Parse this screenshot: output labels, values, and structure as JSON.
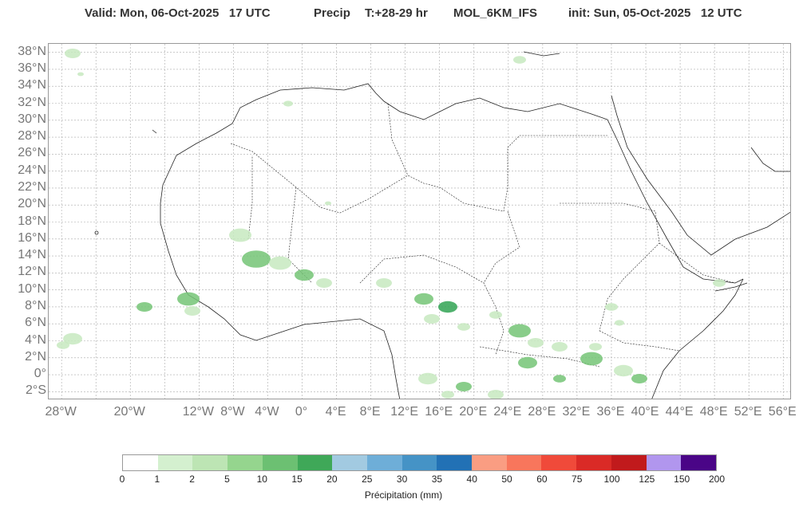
{
  "header": {
    "valid": "Valid: Mon, 06-Oct-2025   17 UTC",
    "precip": "Precip",
    "timestep": "T:+28-29 hr",
    "model": "MOL_6KM_IFS",
    "init": "init: Sun, 05-Oct-2025   12 UTC"
  },
  "map": {
    "lat_labels": [
      "38°N",
      "36°N",
      "34°N",
      "32°N",
      "30°N",
      "28°N",
      "26°N",
      "24°N",
      "22°N",
      "20°N",
      "18°N",
      "16°N",
      "14°N",
      "12°N",
      "10°N",
      "8°N",
      "6°N",
      "4°N",
      "2°N",
      "0°",
      "2°S"
    ],
    "lon_labels": [
      "28°W",
      "20°W",
      "12°W",
      "8°W",
      "4°W",
      "0°",
      "4°E",
      "8°E",
      "12°E",
      "16°E",
      "20°E",
      "24°E",
      "28°E",
      "32°E",
      "36°E",
      "40°E",
      "44°E",
      "48°E",
      "52°E",
      "56°E"
    ],
    "gridline_color": "#aaaaaa",
    "coastline_color": "#222222",
    "precip_color_light": "#c7e9c0",
    "precip_color_mid": "#74c476",
    "precip_color_dark": "#31a354"
  },
  "colorbar": {
    "ticks": [
      "0",
      "1",
      "2",
      "5",
      "10",
      "15",
      "20",
      "25",
      "30",
      "35",
      "40",
      "50",
      "60",
      "75",
      "100",
      "125",
      "150",
      "200"
    ],
    "colors": [
      "#ffffff",
      "#d4f0cf",
      "#bde5b4",
      "#95d58e",
      "#6cc072",
      "#3fa858",
      "#a2cae1",
      "#6eaed8",
      "#4593c6",
      "#2271b5",
      "#fa9d82",
      "#f8765c",
      "#f04a3a",
      "#da2a26",
      "#c11a1c",
      "#b196ee",
      "#4a0587"
    ],
    "label": "Précipitation (mm)"
  }
}
